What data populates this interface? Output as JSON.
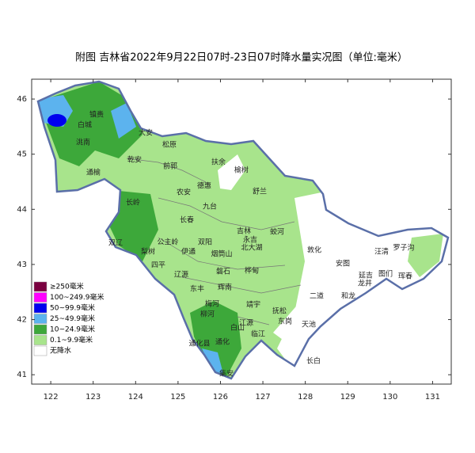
{
  "title": "附图  吉林省2022年9月22日07时-23日07时降水量实况图（单位:毫米）",
  "map": {
    "xlim": [
      121.55,
      131.44
    ],
    "ylim": [
      40.83,
      46.36
    ],
    "xticks": [
      122,
      123,
      124,
      125,
      126,
      127,
      128,
      129,
      130,
      131
    ],
    "yticks": [
      41,
      42,
      43,
      44,
      45,
      46
    ]
  },
  "legend": [
    {
      "label": "≥250毫米",
      "color": "#7a0040"
    },
    {
      "label": "100~249.9毫米",
      "color": "#ff00ff"
    },
    {
      "label": "50~99.9毫米",
      "color": "#0000ee"
    },
    {
      "label": "25~49.9毫米",
      "color": "#5cb3ee"
    },
    {
      "label": "10~24.9毫米",
      "color": "#3da83a"
    },
    {
      "label": "0.1~9.9毫米",
      "color": "#a8e48c"
    },
    {
      "label": "无降水",
      "color": "#ffffff"
    }
  ],
  "places": [
    "镇赉",
    "白城",
    "洮南",
    "大安",
    "松原",
    "乾安",
    "前郭",
    "扶余",
    "榆树",
    "通榆",
    "德惠",
    "农安",
    "舒兰",
    "九台",
    "长岭",
    "长春",
    "吉林",
    "蛟河",
    "永吉",
    "北大湖",
    "双辽",
    "公主岭",
    "梨树",
    "四平",
    "伊通",
    "双阳",
    "烟筒山",
    "磐石",
    "桦甸",
    "辽源",
    "东丰",
    "辉南",
    "梅河",
    "柳河",
    "靖宇",
    "抚松",
    "东岗",
    "敦化",
    "安图",
    "汪清",
    "罗子沟",
    "延吉",
    "图们",
    "珲春",
    "龙井",
    "和龙",
    "二道",
    "天池",
    "长白",
    "白山",
    "江源",
    "临江",
    "通化",
    "通化县",
    "集安"
  ]
}
